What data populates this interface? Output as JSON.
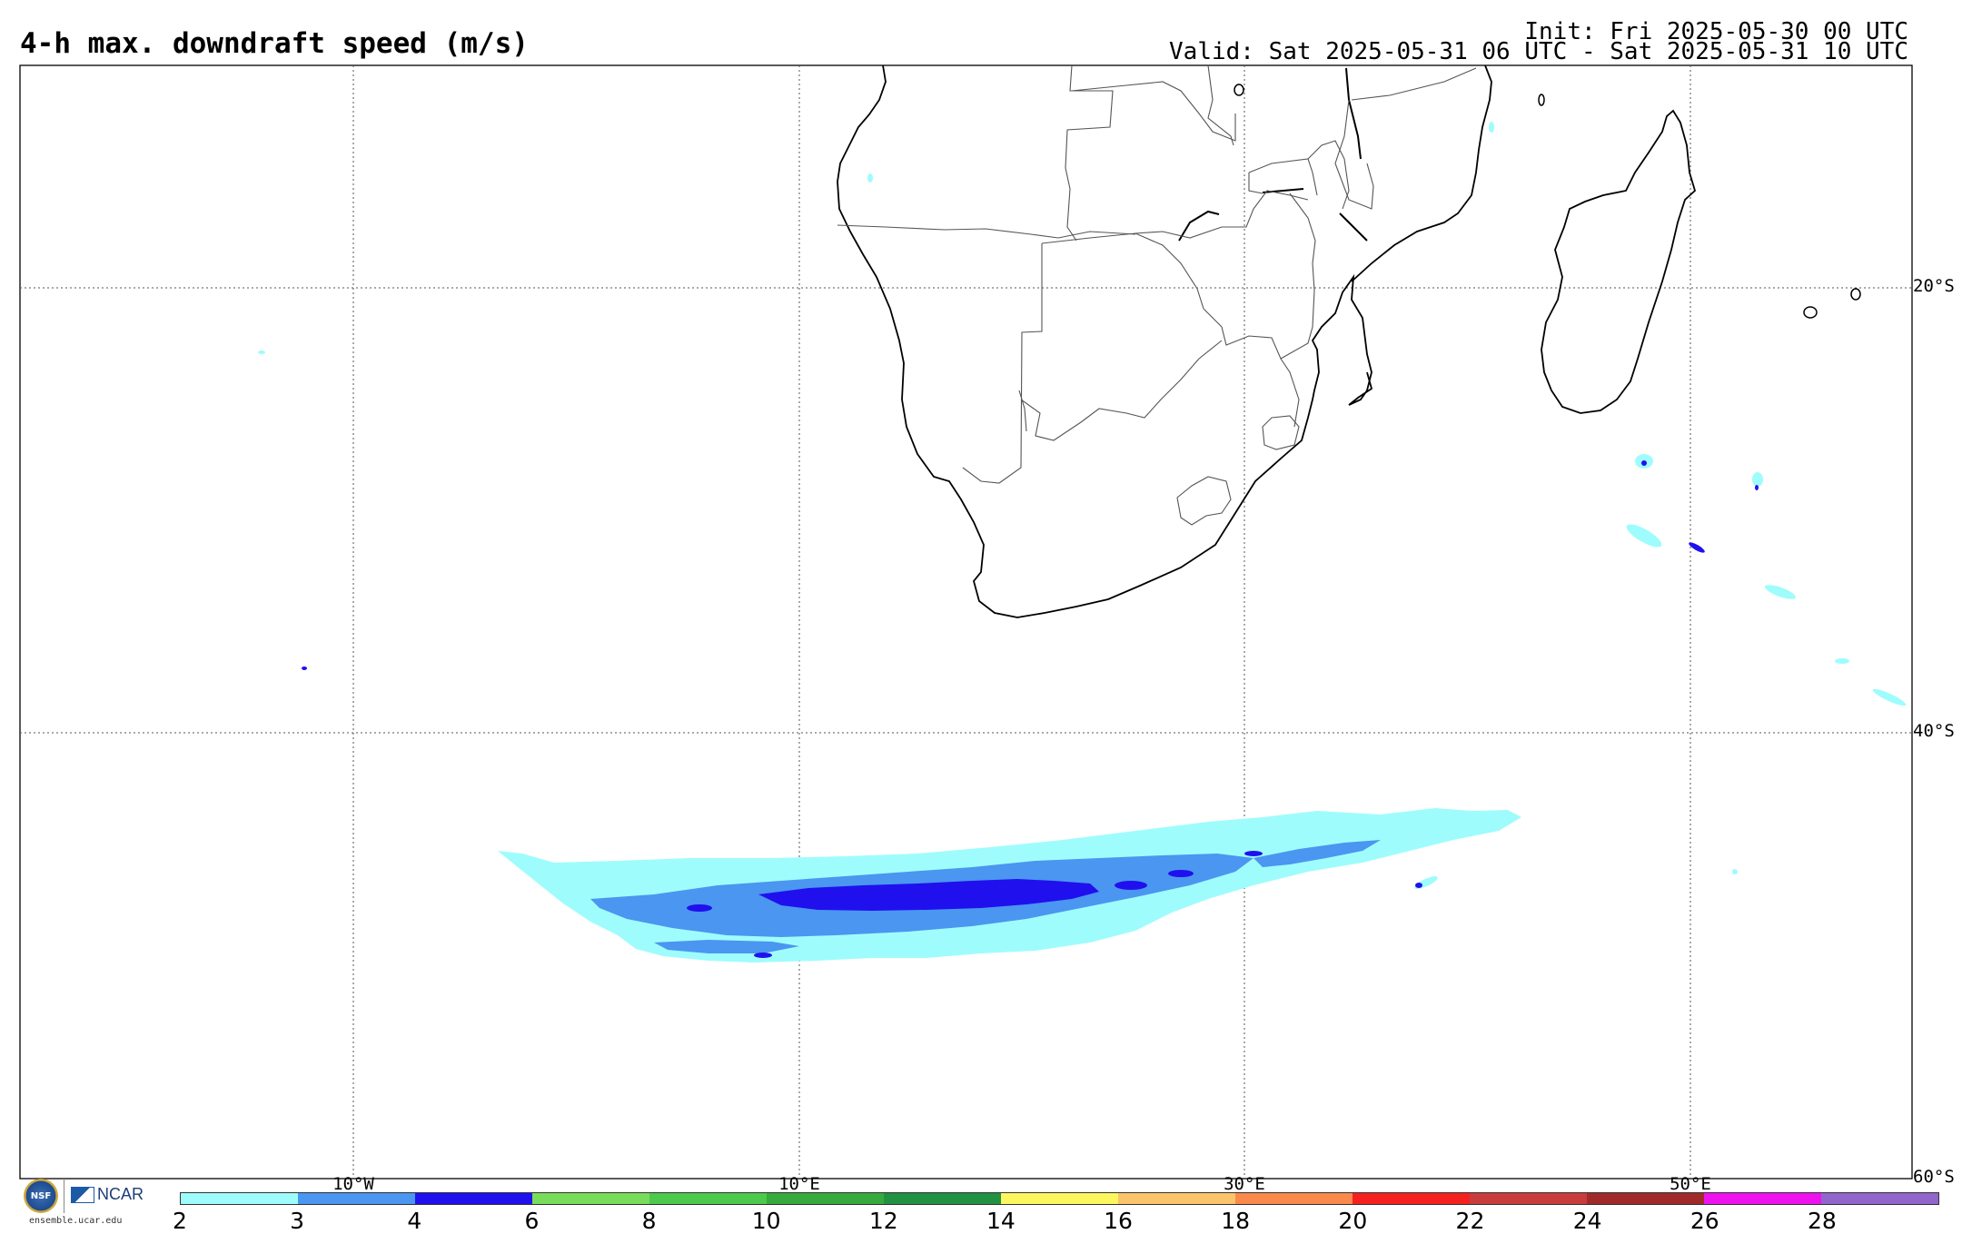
{
  "title": "4-h max. downdraft speed (m/s)",
  "init": "Init: Fri 2025-05-30 00 UTC",
  "valid": "Valid: Sat 2025-05-31 06 UTC - Sat 2025-05-31 10 UTC",
  "lat_labels": [
    "20°S",
    "40°S",
    "60°S"
  ],
  "lon_labels": [
    "10°W",
    "10°E",
    "30°E",
    "50°E"
  ],
  "colorbar": {
    "ticks": [
      "2",
      "3",
      "4",
      "6",
      "8",
      "10",
      "12",
      "14",
      "16",
      "18",
      "20",
      "22",
      "24",
      "26",
      "28"
    ],
    "colors": [
      "#9ffcfc",
      "#4a96f0",
      "#2010ee",
      "#78dd5a",
      "#4dc94b",
      "#36aa3c",
      "#219142",
      "#fcf75f",
      "#fcc46a",
      "#fa8a4b",
      "#f5211e",
      "#c93c3c",
      "#a02a2a",
      "#ee12ee",
      "#9165cc"
    ]
  },
  "logos": {
    "nsf": "NSF",
    "ncar": "NCAR",
    "url": "ensemble.ucar.edu"
  }
}
